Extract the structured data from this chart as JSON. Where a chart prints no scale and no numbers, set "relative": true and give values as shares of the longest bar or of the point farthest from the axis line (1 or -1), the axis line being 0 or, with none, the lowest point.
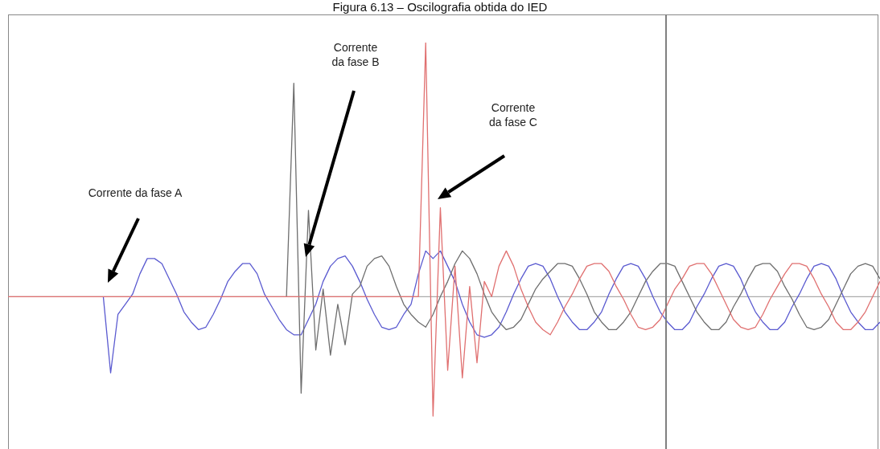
{
  "chart_data": {
    "type": "line",
    "title": "Figura 6.13 – Oscilografia obtida do IED",
    "relative": true,
    "categories": [
      null,
      null,
      null,
      null,
      null,
      null,
      null,
      null,
      null,
      null,
      null,
      null,
      null,
      null,
      null,
      null,
      null,
      null,
      null,
      null,
      null,
      null,
      null,
      null,
      null,
      null,
      null,
      null,
      null,
      null,
      null,
      null,
      null,
      null,
      null,
      null,
      null,
      null,
      null,
      null,
      null,
      null,
      null,
      null,
      null,
      null,
      null,
      null,
      null,
      null,
      null,
      null,
      null,
      null,
      null,
      null,
      null,
      null,
      null,
      null,
      null,
      null,
      null,
      null,
      null,
      null,
      null,
      null,
      null,
      null,
      null,
      null,
      null,
      null,
      null,
      null,
      null,
      null,
      null,
      null,
      null,
      null,
      null,
      null,
      null,
      null,
      null,
      null,
      null,
      null,
      null,
      null,
      null,
      null,
      null,
      null,
      null,
      null,
      null,
      null,
      null,
      null,
      null,
      null,
      null,
      null,
      null,
      null,
      null,
      null,
      null,
      null,
      null,
      null,
      null,
      null,
      null,
      null,
      null,
      null
    ],
    "series": [
      {
        "color": "#5a5ad0",
        "values": [
          null,
          null,
          null,
          null,
          null,
          null,
          null,
          null,
          null,
          null,
          null,
          null,
          null,
          0.0,
          -0.3,
          -0.07,
          -0.03,
          0.01,
          0.09,
          0.15,
          0.15,
          0.13,
          0.07,
          0.01,
          -0.06,
          -0.1,
          -0.13,
          -0.12,
          -0.07,
          -0.01,
          0.06,
          0.1,
          0.13,
          0.13,
          0.09,
          0.01,
          -0.04,
          -0.09,
          -0.13,
          -0.15,
          -0.15,
          -0.09,
          -0.03,
          0.06,
          0.12,
          0.15,
          0.16,
          0.12,
          0.06,
          -0.01,
          -0.07,
          -0.12,
          -0.13,
          -0.12,
          -0.07,
          -0.03,
          0.09,
          0.18,
          0.15,
          0.18,
          0.12,
          0.06,
          -0.03,
          -0.1,
          -0.15,
          -0.16,
          -0.15,
          -0.12,
          -0.06,
          0.01,
          0.07,
          0.12,
          0.13,
          0.12,
          0.07,
          0.0,
          -0.06,
          -0.1,
          -0.13,
          -0.13,
          -0.1,
          -0.06,
          0.01,
          0.07,
          0.12,
          0.13,
          0.12,
          0.07,
          0.0,
          -0.06,
          -0.1,
          -0.13,
          -0.13,
          -0.1,
          -0.04,
          0.01,
          0.07,
          0.12,
          0.13,
          0.12,
          0.07,
          0.0,
          -0.06,
          -0.1,
          -0.13,
          -0.13,
          -0.1,
          -0.04,
          0.01,
          0.07,
          0.12,
          0.13,
          0.12,
          0.07,
          0.0,
          -0.06,
          -0.1,
          -0.13,
          -0.13,
          -0.1
        ]
      },
      {
        "color": "#6e6e6e",
        "values": [
          null,
          null,
          null,
          null,
          null,
          null,
          null,
          null,
          null,
          null,
          null,
          null,
          null,
          null,
          null,
          null,
          null,
          null,
          null,
          null,
          null,
          null,
          null,
          null,
          null,
          null,
          null,
          null,
          null,
          null,
          null,
          null,
          null,
          null,
          null,
          null,
          null,
          null,
          0.0,
          0.84,
          -0.38,
          0.34,
          -0.21,
          0.03,
          -0.23,
          -0.03,
          -0.19,
          0.01,
          0.04,
          0.12,
          0.15,
          0.16,
          0.12,
          0.04,
          -0.03,
          -0.07,
          -0.1,
          -0.12,
          -0.07,
          0.0,
          0.06,
          0.13,
          0.18,
          0.15,
          0.09,
          0.01,
          -0.06,
          -0.1,
          -0.13,
          -0.12,
          -0.09,
          -0.03,
          0.03,
          0.07,
          0.1,
          0.13,
          0.13,
          0.12,
          0.07,
          0.01,
          -0.06,
          -0.1,
          -0.13,
          -0.13,
          -0.1,
          -0.06,
          0.0,
          0.06,
          0.1,
          0.13,
          0.13,
          0.12,
          0.06,
          0.0,
          -0.06,
          -0.1,
          -0.13,
          -0.13,
          -0.1,
          -0.04,
          0.01,
          0.07,
          0.12,
          0.13,
          0.13,
          0.1,
          0.04,
          -0.01,
          -0.07,
          -0.12,
          -0.13,
          -0.12,
          -0.09,
          -0.03,
          0.03,
          0.09,
          0.12,
          0.13,
          0.12,
          0.07
        ]
      },
      {
        "color": "#e07070",
        "values": [
          0,
          0,
          0,
          0,
          0,
          0,
          0,
          0,
          0,
          0,
          0,
          0,
          0,
          0,
          0,
          0,
          0,
          0,
          0,
          0,
          0,
          0,
          0,
          0,
          0,
          0,
          0,
          0,
          0,
          0,
          0,
          0,
          0,
          0,
          0,
          0,
          0,
          0,
          0,
          0,
          0,
          0,
          0,
          0,
          0,
          0,
          0,
          0,
          0,
          0,
          0,
          0,
          0,
          0,
          0,
          0,
          0,
          1.0,
          -0.47,
          0.35,
          -0.29,
          0.12,
          -0.32,
          0.04,
          -0.26,
          0.06,
          0.0,
          0.12,
          0.18,
          0.12,
          0.03,
          -0.04,
          -0.1,
          -0.13,
          -0.15,
          -0.1,
          -0.04,
          0.01,
          0.07,
          0.12,
          0.13,
          0.13,
          0.1,
          0.04,
          -0.01,
          -0.07,
          -0.12,
          -0.13,
          -0.12,
          -0.09,
          -0.03,
          0.03,
          0.07,
          0.12,
          0.13,
          0.13,
          0.09,
          0.03,
          -0.03,
          -0.09,
          -0.12,
          -0.13,
          -0.12,
          -0.07,
          -0.01,
          0.04,
          0.09,
          0.13,
          0.13,
          0.12,
          0.07,
          0.01,
          -0.04,
          -0.1,
          -0.13,
          -0.13,
          -0.1,
          -0.06,
          0.0,
          0.06
        ]
      }
    ],
    "annotations": [
      "Corrente da fase A",
      "Corrente da fase B",
      "Corrente da fase C"
    ]
  }
}
